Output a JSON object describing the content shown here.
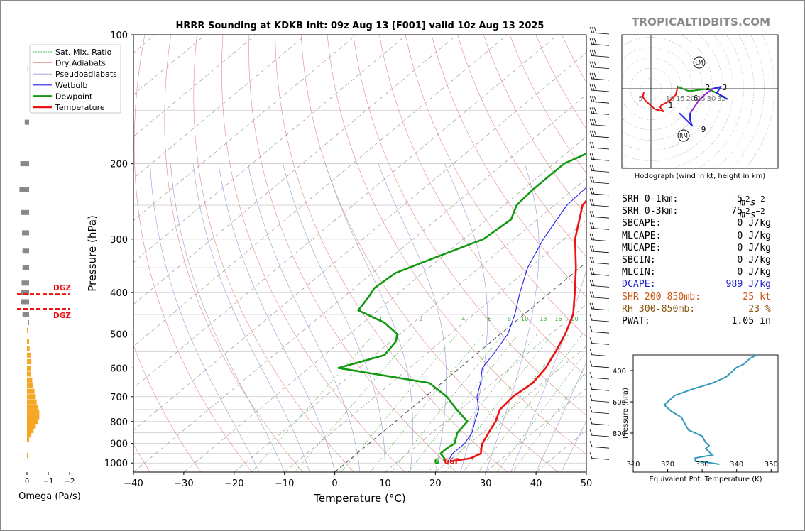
{
  "brand": "TROPICALTIDBITS.COM",
  "colors": {
    "temperature": "#ee1111",
    "dewpoint": "#119911",
    "wetbulb": "#2222ee",
    "dry_adiabat": "#e08a8a",
    "pseudoadiabat": "#9a9ad8",
    "mixing_ratio": "#33aa33",
    "isotherm": "#999999",
    "dgz": "#ee1111",
    "omega_down": "#f5a623",
    "omega_up": "#888888",
    "theta_e": "#3399bb",
    "dcape": "#2222cc",
    "shear": "#cc5511",
    "rh": "#885511"
  },
  "chart_data": [
    {
      "type": "line",
      "name": "skew-t",
      "title": "HRRR Sounding at KDKB Init: 09z Aug 13 [F001] valid 10z Aug 13 2025",
      "xlabel": "Temperature (°C)",
      "ylabel": "Pressure (hPa)",
      "xlim": [
        -40,
        50
      ],
      "ylim": [
        1050,
        100
      ],
      "y_scale": "log",
      "xticks": [
        -40,
        -30,
        -20,
        -10,
        0,
        10,
        20,
        30,
        40,
        50
      ],
      "yticks": [
        100,
        200,
        300,
        400,
        500,
        600,
        700,
        800,
        900,
        1000
      ],
      "grid": true,
      "legend_position": "top-left",
      "legend": [
        "Sat. Mix. Ratio",
        "Dry Adiabats",
        "Pseudoadiabats",
        "Wetbulb",
        "Dewpoint",
        "Temperature"
      ],
      "mixing_ratio_labels": [
        "1",
        "2",
        "4",
        "6",
        "8",
        "10",
        "13",
        "16",
        "20",
        "24",
        "30",
        "36"
      ],
      "surface_label": "66F",
      "surface_label_alt": "6",
      "series": [
        {
          "name": "Temperature",
          "p": [
            990,
            975,
            950,
            925,
            900,
            850,
            800,
            750,
            700,
            650,
            600,
            550,
            500,
            450,
            400,
            350,
            300,
            250,
            220,
            200,
            180,
            160,
            140,
            130,
            120,
            110,
            100
          ],
          "t": [
            20.5,
            23.7,
            24.6,
            23.5,
            22.5,
            21.2,
            19.9,
            17.9,
            17.4,
            18.1,
            17.1,
            15.2,
            12.9,
            9.8,
            4.9,
            -0.8,
            -7.8,
            -14.4,
            -16.0,
            -16.0,
            -15.2,
            -14.4,
            -13.9,
            -10.7,
            -7.2,
            -3.3,
            1.8
          ]
        },
        {
          "name": "Dewpoint",
          "p": [
            990,
            975,
            950,
            925,
            900,
            850,
            800,
            750,
            700,
            650,
            600,
            560,
            520,
            500,
            470,
            440,
            410,
            390,
            360,
            330,
            300,
            270,
            250,
            230,
            200,
            180,
            160,
            150,
            140,
            130,
            120,
            110,
            100
          ],
          "t": [
            19.1,
            18.5,
            16.6,
            16.6,
            17.0,
            15.0,
            14.3,
            9.3,
            4.3,
            -2.5,
            -24.1,
            -18.0,
            -19.0,
            -20.5,
            -25.8,
            -33.9,
            -35.0,
            -36.0,
            -35.4,
            -31.0,
            -26.0,
            -25.2,
            -27.5,
            -28.0,
            -28.0,
            -24.0,
            -21.0,
            -17.0,
            -17.0,
            -17.0,
            -17.0,
            -17.0,
            -15.0
          ]
        },
        {
          "name": "Wetbulb",
          "p": [
            990,
            950,
            900,
            850,
            800,
            750,
            700,
            650,
            600,
            550,
            500,
            450,
            400,
            350,
            300,
            250,
            220
          ],
          "t": [
            19.9,
            19.0,
            19.0,
            17.9,
            15.8,
            13.7,
            10.3,
            7.7,
            4.5,
            3.2,
            1.5,
            -1.8,
            -6.0,
            -10.4,
            -14.1,
            -17.5,
            -18.0
          ]
        }
      ]
    },
    {
      "type": "bar",
      "name": "omega",
      "xlabel": "Omega (Pa/s)",
      "xticks": [
        "0",
        "−1",
        "−2"
      ],
      "dgz_label": "DGZ",
      "dgz_pressure": [
        400,
        450
      ],
      "pressure": [
        120,
        160,
        200,
        230,
        260,
        290,
        320,
        350,
        380,
        400,
        420,
        450,
        470,
        490,
        520,
        540,
        560,
        580,
        600,
        620,
        640,
        660,
        680,
        700,
        720,
        740,
        760,
        780,
        800,
        820,
        840,
        860,
        880,
        960
      ],
      "omega": [
        -0.02,
        0.1,
        0.2,
        0.22,
        0.18,
        0.16,
        0.15,
        0.15,
        0.17,
        0.18,
        0.18,
        0.15,
        0.03,
        0.02,
        0.05,
        0.06,
        0.08,
        0.1,
        0.08,
        0.09,
        0.12,
        0.13,
        0.17,
        0.2,
        0.22,
        0.25,
        0.28,
        0.28,
        0.25,
        0.2,
        0.15,
        0.1,
        0.05,
        0.02
      ]
    },
    {
      "type": "line",
      "name": "hodograph",
      "title": "Hodograph (wind in kt, height in km)",
      "ring_labels": [
        "5",
        "10",
        "15",
        "20",
        "25",
        "30",
        "35"
      ],
      "height_labels": [
        "1",
        "2",
        "3",
        "6",
        "9"
      ],
      "markers": [
        "LM",
        "RM"
      ],
      "u": [
        -3.5,
        -4,
        -2.5,
        2,
        6,
        4.5,
        5,
        9,
        12,
        13,
        18,
        20,
        28,
        37,
        32,
        34,
        30,
        26,
        23,
        19,
        19,
        20,
        16,
        14
      ],
      "v": [
        -2,
        -4,
        -6,
        -10,
        -11,
        -9,
        -8,
        -6,
        -3,
        1,
        -1,
        -1,
        0,
        -5,
        -2,
        1,
        0,
        -3,
        -6,
        -12,
        -15,
        -18,
        -14,
        -12
      ],
      "colors": [
        "#ee1111",
        "#ee1111",
        "#ee1111",
        "#ee1111",
        "#ee1111",
        "#ee1111",
        "#ee1111",
        "#ee1111",
        "#ee1111",
        "#119911",
        "#119911",
        "#119911",
        "#119911",
        "#2222ee",
        "#2222ee",
        "#2222ee",
        "#9922cc",
        "#9922cc",
        "#9922cc",
        "#2222ee",
        "#2222ee",
        "#2222ee",
        "#2222ee",
        "#2222ee"
      ]
    },
    {
      "type": "line",
      "name": "theta-e",
      "xlabel": "Equivalent Pot. Temperature (K)",
      "ylabel": "Pressure (hPa)",
      "xlim": [
        310,
        352
      ],
      "ylim": [
        1050,
        300
      ],
      "xticks": [
        310,
        320,
        330,
        340,
        350
      ],
      "yticks": [
        400,
        600,
        800,
        1000
      ],
      "pressure": [
        1000,
        990,
        980,
        960,
        940,
        900,
        880,
        860,
        820,
        800,
        780,
        740,
        700,
        660,
        620,
        600,
        560,
        520,
        480,
        440,
        400,
        380,
        360,
        340,
        320,
        300
      ],
      "theta_e": [
        335,
        332,
        328,
        328,
        333,
        331,
        332,
        331,
        330,
        328,
        326,
        325,
        324,
        321,
        319,
        320,
        322,
        327,
        333,
        337,
        339,
        340,
        342,
        343,
        344,
        346
      ]
    }
  ],
  "stats": [
    {
      "label": "SRH 0-1km:",
      "value": "-5",
      "unit": "m2s-2",
      "color": "#000000"
    },
    {
      "label": "SRH 0-3km:",
      "value": "75",
      "unit": "m2s-2",
      "color": "#000000"
    },
    {
      "label": "SBCAPE:",
      "value": "0 J/kg",
      "unit": "",
      "color": "#000000"
    },
    {
      "label": "MLCAPE:",
      "value": "0 J/kg",
      "unit": "",
      "color": "#000000"
    },
    {
      "label": "MUCAPE:",
      "value": "0 J/kg",
      "unit": "",
      "color": "#000000"
    },
    {
      "label": "SBCIN:",
      "value": "0 J/kg",
      "unit": "",
      "color": "#000000"
    },
    {
      "label": "MLCIN:",
      "value": "0 J/kg",
      "unit": "",
      "color": "#000000"
    },
    {
      "label": "DCAPE:",
      "value": "989 J/kg",
      "unit": "",
      "color": "#2222cc"
    },
    {
      "label": "SHR 200-850mb:",
      "value": "25 kt",
      "unit": "",
      "color": "#cc5511"
    },
    {
      "label": "RH 300-850mb:",
      "value": "23 %",
      "unit": "",
      "color": "#885511"
    },
    {
      "label": "PWAT:",
      "value": "1.05 in",
      "unit": "",
      "color": "#000000"
    }
  ]
}
